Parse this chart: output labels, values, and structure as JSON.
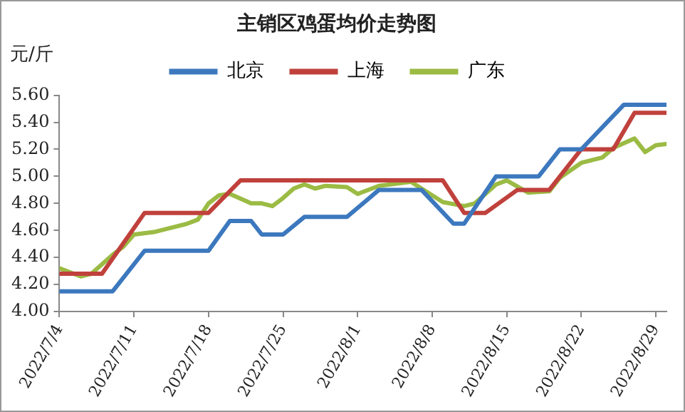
{
  "chart_data": {
    "type": "line",
    "title": "主销区鸡蛋均价走势图",
    "ylabel": "元/斤",
    "xlim": [
      "2022-07-04",
      "2022-08-30"
    ],
    "xticks": [
      {
        "value": "2022-07-04",
        "label": "2022/7/4"
      },
      {
        "value": "2022-07-11",
        "label": "2022/7/11"
      },
      {
        "value": "2022-07-18",
        "label": "2022/7/18"
      },
      {
        "value": "2022-07-25",
        "label": "2022/7/25"
      },
      {
        "value": "2022-08-01",
        "label": "2022/8/1"
      },
      {
        "value": "2022-08-08",
        "label": "2022/8/8"
      },
      {
        "value": "2022-08-15",
        "label": "2022/8/15"
      },
      {
        "value": "2022-08-22",
        "label": "2022/8/22"
      },
      {
        "value": "2022-08-29",
        "label": "2022/8/29"
      }
    ],
    "ylim": [
      4,
      5.6
    ],
    "yticks": [
      {
        "value": 4,
        "label": "4.00"
      },
      {
        "value": 4.2,
        "label": "4.20"
      },
      {
        "value": 4.4,
        "label": "4.40"
      },
      {
        "value": 4.6,
        "label": "4.60"
      },
      {
        "value": 4.8,
        "label": "4.80"
      },
      {
        "value": 5,
        "label": "5.00"
      },
      {
        "value": 5.2,
        "label": "5.20"
      },
      {
        "value": 5.4,
        "label": "5.40"
      },
      {
        "value": 5.6,
        "label": "5.60"
      }
    ],
    "grid": false,
    "legend": "top",
    "marker": "none",
    "line_style": "solid",
    "series": [
      {
        "name": "北京",
        "color": "#3c78be",
        "x": [
          "2022-07-04",
          "2022-07-09",
          "2022-07-12",
          "2022-07-18",
          "2022-07-20",
          "2022-07-22",
          "2022-07-23",
          "2022-07-25",
          "2022-07-27",
          "2022-07-31",
          "2022-08-03",
          "2022-08-07",
          "2022-08-10",
          "2022-08-11",
          "2022-08-14",
          "2022-08-18",
          "2022-08-20",
          "2022-08-22",
          "2022-08-26",
          "2022-08-30"
        ],
        "values": [
          4.15,
          4.15,
          4.45,
          4.45,
          4.67,
          4.67,
          4.57,
          4.57,
          4.7,
          4.7,
          4.9,
          4.9,
          4.65,
          4.65,
          5.0,
          5.0,
          5.2,
          5.2,
          5.53,
          5.53
        ]
      },
      {
        "name": "上海",
        "color": "#c0413c",
        "x": [
          "2022-07-04",
          "2022-07-08",
          "2022-07-12",
          "2022-07-18",
          "2022-07-21",
          "2022-08-09",
          "2022-08-11",
          "2022-08-13",
          "2022-08-16",
          "2022-08-19",
          "2022-08-22",
          "2022-08-25",
          "2022-08-27",
          "2022-08-30"
        ],
        "values": [
          4.28,
          4.28,
          4.73,
          4.73,
          4.97,
          4.97,
          4.73,
          4.73,
          4.9,
          4.9,
          5.2,
          5.2,
          5.47,
          5.47
        ]
      },
      {
        "name": "广东",
        "color": "#9bbb44",
        "x": [
          "2022-07-04",
          "2022-07-06",
          "2022-07-07",
          "2022-07-09",
          "2022-07-10",
          "2022-07-11",
          "2022-07-13",
          "2022-07-15",
          "2022-07-16",
          "2022-07-17",
          "2022-07-18",
          "2022-07-19",
          "2022-07-20",
          "2022-07-22",
          "2022-07-23",
          "2022-07-24",
          "2022-07-25",
          "2022-07-26",
          "2022-07-27",
          "2022-07-28",
          "2022-07-29",
          "2022-07-31",
          "2022-08-01",
          "2022-08-03",
          "2022-08-06",
          "2022-08-07",
          "2022-08-09",
          "2022-08-11",
          "2022-08-12",
          "2022-08-14",
          "2022-08-15",
          "2022-08-17",
          "2022-08-19",
          "2022-08-20",
          "2022-08-22",
          "2022-08-24",
          "2022-08-25",
          "2022-08-27",
          "2022-08-28",
          "2022-08-29",
          "2022-08-30"
        ],
        "values": [
          4.32,
          4.26,
          4.28,
          4.42,
          4.48,
          4.57,
          4.59,
          4.63,
          4.65,
          4.68,
          4.8,
          4.86,
          4.87,
          4.8,
          4.8,
          4.78,
          4.84,
          4.91,
          4.94,
          4.91,
          4.93,
          4.92,
          4.87,
          4.93,
          4.96,
          4.91,
          4.81,
          4.78,
          4.8,
          4.94,
          4.97,
          4.88,
          4.89,
          4.99,
          5.1,
          5.14,
          5.21,
          5.28,
          5.18,
          5.23,
          5.24
        ]
      }
    ]
  }
}
